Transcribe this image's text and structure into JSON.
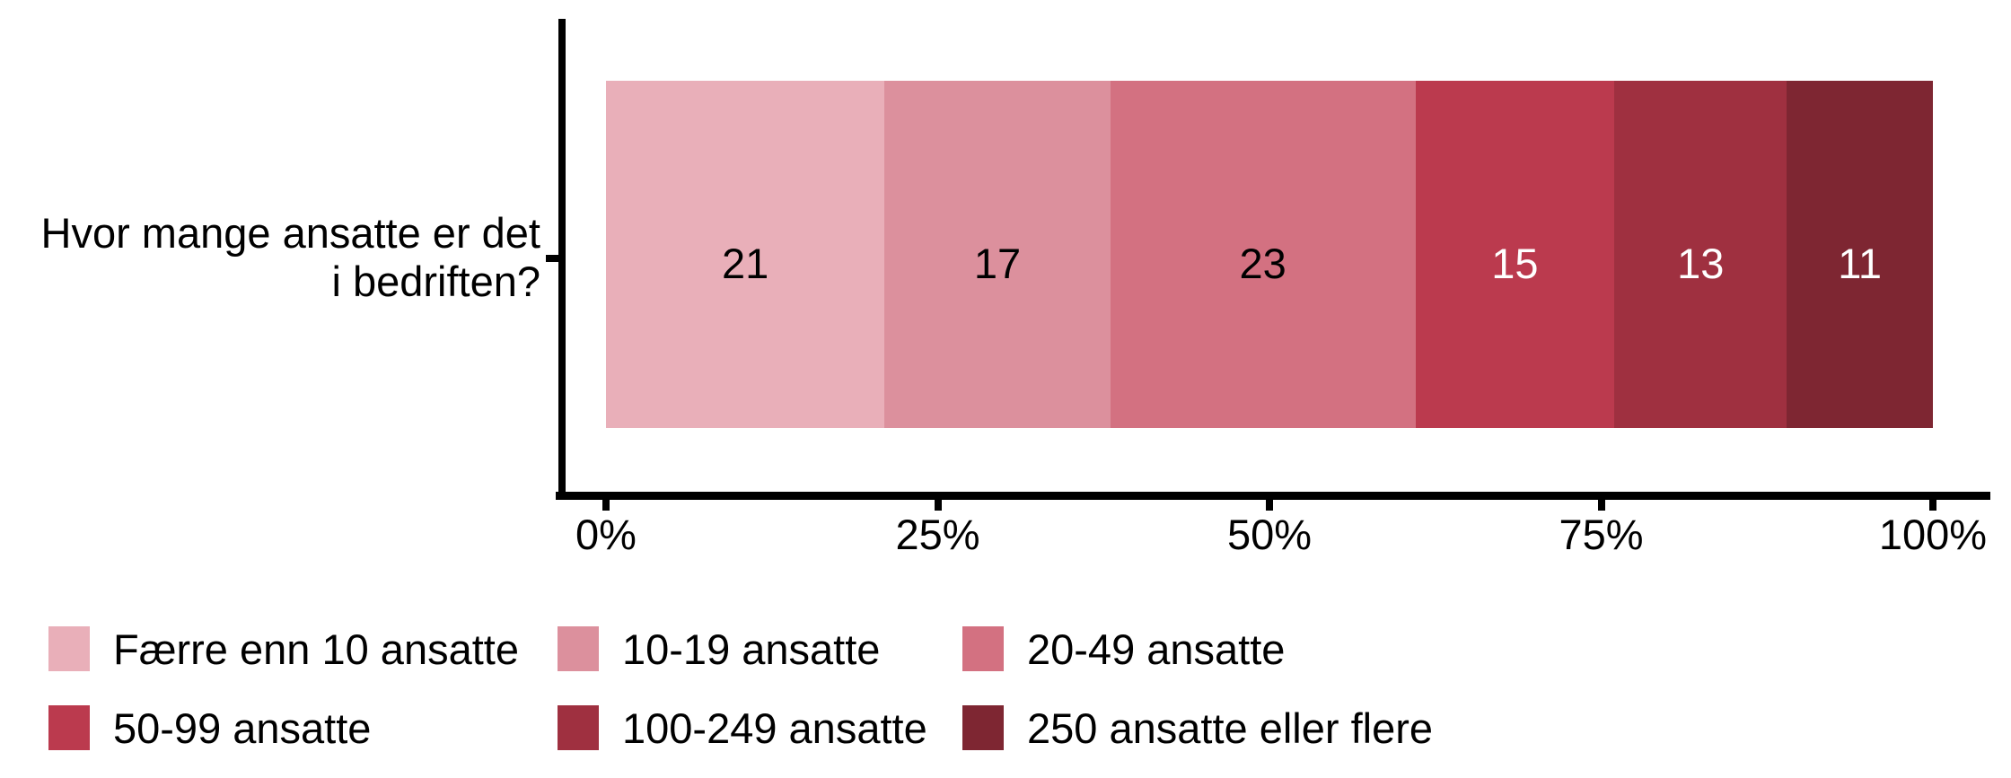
{
  "page": {
    "background": "#ffffff",
    "text_color": "#000000",
    "axis_color": "#000000"
  },
  "chart_data": {
    "type": "bar",
    "orientation": "horizontal",
    "stacked": true,
    "unit": "%",
    "title": "",
    "categories": [
      "Hvor mange ansatte er det i bedriften?"
    ],
    "series": [
      {
        "name": "Færre enn 10 ansatte",
        "values": [
          21
        ],
        "color": "#e9afb9",
        "label_color": "#000000"
      },
      {
        "name": "10-19 ansatte",
        "values": [
          17
        ],
        "color": "#dc909d",
        "label_color": "#000000"
      },
      {
        "name": "20-49 ansatte",
        "values": [
          23
        ],
        "color": "#d37181",
        "label_color": "#000000"
      },
      {
        "name": "50-99 ansatte",
        "values": [
          15
        ],
        "color": "#bb3a4e",
        "label_color": "#ffffff"
      },
      {
        "name": "100-249 ansatte",
        "values": [
          13
        ],
        "color": "#9f3040",
        "label_color": "#ffffff"
      },
      {
        "name": "250 ansatte eller flere",
        "values": [
          11
        ],
        "color": "#7e2632",
        "label_color": "#ffffff"
      }
    ],
    "x_axis": {
      "range": [
        0,
        100
      ],
      "ticks": [
        0,
        25,
        50,
        75,
        100
      ],
      "tick_labels": [
        "0%",
        "25%",
        "50%",
        "75%",
        "100%"
      ]
    },
    "y_axis": {
      "label": "Hvor mange ansatte er det i bedriften?",
      "label_lines": [
        "Hvor mange ansatte er det",
        "i bedriften?"
      ]
    },
    "legend": {
      "position": "bottom",
      "rows": 2,
      "columns": 3
    },
    "grid": false
  }
}
